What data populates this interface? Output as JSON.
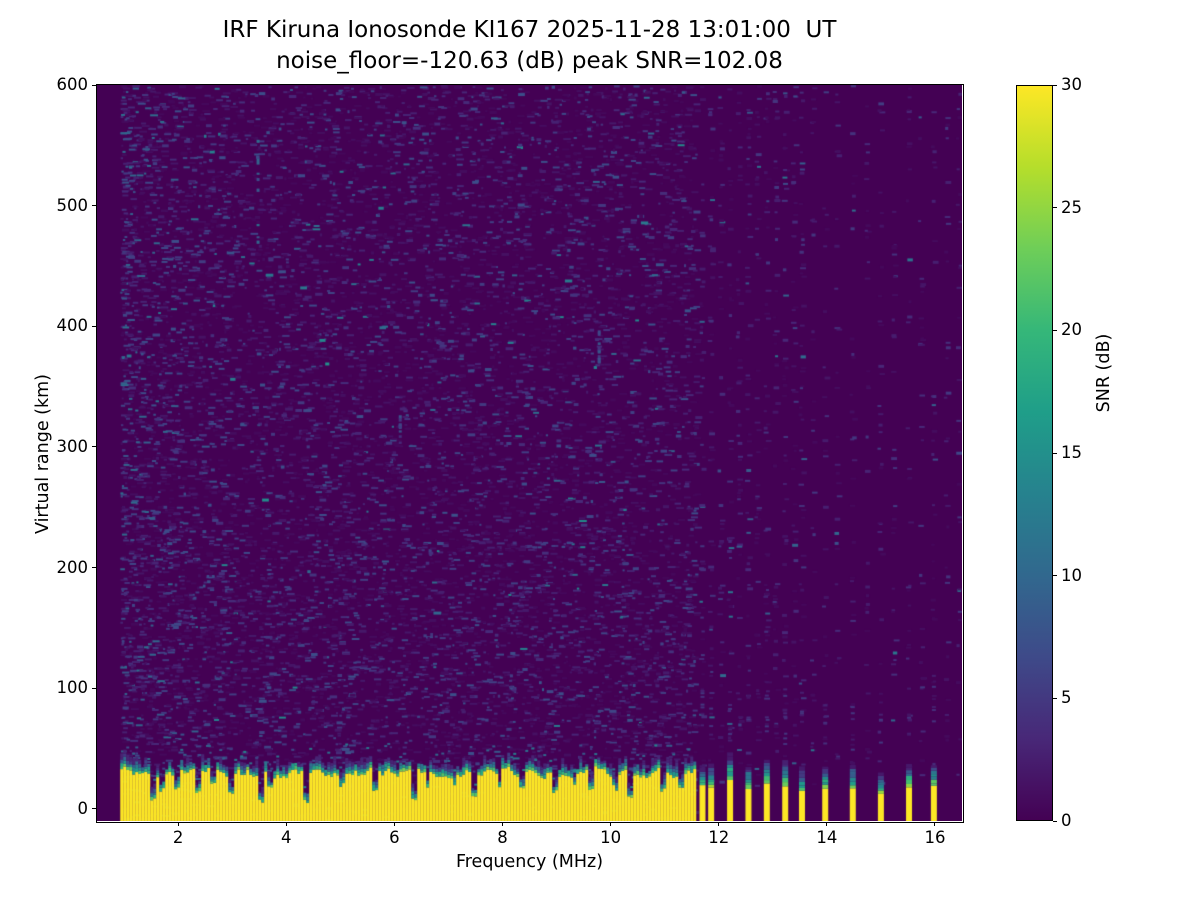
{
  "chart_data": {
    "type": "heatmap",
    "title": "IRF Kiruna Ionosonde KI167 2025-11-28 13:01:00  UT",
    "subtitle": "noise_floor=-120.63 (dB) peak SNR=102.08",
    "xlabel": "Frequency (MHz)",
    "ylabel": "Virtual range (km)",
    "xlim": [
      0.5,
      16.5
    ],
    "ylim": [
      -10,
      600
    ],
    "xticks": [
      2,
      4,
      6,
      8,
      10,
      12,
      14,
      16
    ],
    "yticks": [
      0,
      100,
      200,
      300,
      400,
      500,
      600
    ],
    "grid": false,
    "noise_floor_db": -120.63,
    "peak_snr_db": 102.08,
    "colorbar": {
      "label": "SNR (dB)",
      "range": [
        0,
        30
      ],
      "ticks": [
        0,
        5,
        10,
        15,
        20,
        25,
        30
      ],
      "colormap": "viridis",
      "stops": [
        "#440154",
        "#482878",
        "#3e4a89",
        "#31688e",
        "#26828e",
        "#1f9e89",
        "#35b779",
        "#6ece58",
        "#b5de2b",
        "#fde725"
      ]
    },
    "heatmap": {
      "description": "Ionogram SNR map: dim noise speckle (0-8 dB) over dark background across the whole height; saturated (>=30 dB, yellow) ground-clutter band from the bottom edge up to ~25-38 km, continuous from 0.93 to ~11.57 MHz with narrow low-SNR notches; above 11.6 MHz the sounding is channelized: narrow yellow clutter stripes at discrete frequencies with green/teal tips up to ~40-55 km, and faint vertical noise columns at channel frequencies; no data left of 0.93 MHz.",
      "sweep_start_mhz": 0.93,
      "continuous_band_end_mhz": 11.57,
      "clutter_top_km_range": [
        22,
        38
      ],
      "notches": [
        {
          "f": 1.52,
          "w": 0.05,
          "km": 6
        },
        {
          "f": 1.68,
          "w": 0.04,
          "km": 14
        },
        {
          "f": 1.95,
          "w": 0.05,
          "km": 13
        },
        {
          "f": 2.33,
          "w": 0.05,
          "km": 10
        },
        {
          "f": 2.62,
          "w": 0.04,
          "km": 17
        },
        {
          "f": 2.95,
          "w": 0.05,
          "km": 12
        },
        {
          "f": 3.5,
          "w": 0.06,
          "km": 5
        },
        {
          "f": 3.68,
          "w": 0.04,
          "km": 14
        },
        {
          "f": 4.33,
          "w": 0.06,
          "km": 5
        },
        {
          "f": 5.02,
          "w": 0.04,
          "km": 17
        },
        {
          "f": 5.62,
          "w": 0.05,
          "km": 13
        },
        {
          "f": 6.33,
          "w": 0.06,
          "km": 4
        },
        {
          "f": 6.6,
          "w": 0.04,
          "km": 14
        },
        {
          "f": 7.1,
          "w": 0.04,
          "km": 16
        },
        {
          "f": 7.44,
          "w": 0.06,
          "km": 6
        },
        {
          "f": 7.92,
          "w": 0.04,
          "km": 16
        },
        {
          "f": 8.32,
          "w": 0.05,
          "km": 13
        },
        {
          "f": 8.95,
          "w": 0.05,
          "km": 13
        },
        {
          "f": 9.32,
          "w": 0.04,
          "km": 16
        },
        {
          "f": 9.62,
          "w": 0.05,
          "km": 13
        },
        {
          "f": 10.05,
          "w": 0.04,
          "km": 15
        },
        {
          "f": 10.35,
          "w": 0.06,
          "km": 7
        },
        {
          "f": 10.95,
          "w": 0.05,
          "km": 13
        },
        {
          "f": 11.28,
          "w": 0.04,
          "km": 16
        }
      ],
      "stripes": [
        {
          "f": 11.7,
          "top_km": 18,
          "tip_km": 45
        },
        {
          "f": 11.86,
          "top_km": 20,
          "tip_km": 55
        },
        {
          "f": 12.21,
          "top_km": 20,
          "tip_km": 52
        },
        {
          "f": 12.55,
          "top_km": 19,
          "tip_km": 55
        },
        {
          "f": 12.89,
          "top_km": 20,
          "tip_km": 50
        },
        {
          "f": 13.23,
          "top_km": 18,
          "tip_km": 48
        },
        {
          "f": 13.54,
          "top_km": 16,
          "tip_km": 42
        },
        {
          "f": 13.97,
          "top_km": 15,
          "tip_km": 40
        },
        {
          "f": 14.48,
          "top_km": 16,
          "tip_km": 38
        },
        {
          "f": 15.0,
          "top_km": 15,
          "tip_km": 42
        },
        {
          "f": 15.52,
          "top_km": 20,
          "tip_km": 50
        },
        {
          "f": 15.98,
          "top_km": 22,
          "tip_km": 55
        }
      ],
      "noise_columns": [
        {
          "f": 11.7,
          "density": "high"
        },
        {
          "f": 11.86,
          "density": "high"
        },
        {
          "f": 12.04,
          "density": "high"
        },
        {
          "f": 12.21,
          "density": "high"
        },
        {
          "f": 12.38,
          "density": "high"
        },
        {
          "f": 12.55,
          "density": "high"
        },
        {
          "f": 12.72,
          "density": "high"
        },
        {
          "f": 12.89,
          "density": "high"
        },
        {
          "f": 13.06,
          "density": "high"
        },
        {
          "f": 13.23,
          "density": "high"
        },
        {
          "f": 13.4,
          "density": "high"
        },
        {
          "f": 13.54,
          "density": "high"
        },
        {
          "f": 13.75,
          "density": "low"
        },
        {
          "f": 13.97,
          "density": "low"
        },
        {
          "f": 14.2,
          "density": "low"
        },
        {
          "f": 14.48,
          "density": "low"
        },
        {
          "f": 14.75,
          "density": "low"
        },
        {
          "f": 15.0,
          "density": "low"
        },
        {
          "f": 15.25,
          "density": "low"
        },
        {
          "f": 15.52,
          "density": "low"
        },
        {
          "f": 15.75,
          "density": "low"
        },
        {
          "f": 15.98,
          "density": "low"
        },
        {
          "f": 16.22,
          "density": "low"
        },
        {
          "f": 16.45,
          "density": "low"
        }
      ],
      "streaks": [
        {
          "f": 3.47,
          "km0": 470,
          "km1": 555,
          "db": 9
        },
        {
          "f": 9.78,
          "km0": 368,
          "km1": 400,
          "db": 7
        },
        {
          "f": 6.1,
          "km0": 298,
          "km1": 330,
          "db": 6
        }
      ],
      "seed": 7
    }
  }
}
